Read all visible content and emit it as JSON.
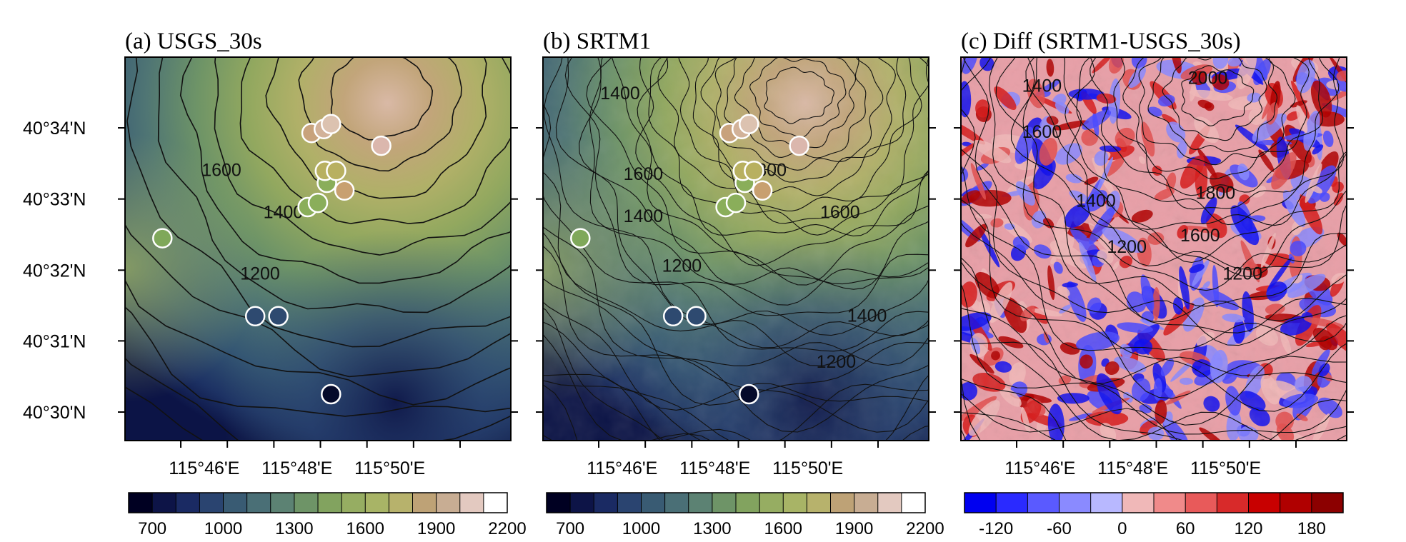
{
  "figure": {
    "y_tick_labels": [
      "40°34'N",
      "40°33'N",
      "40°32'N",
      "40°31'N",
      "40°30'N"
    ],
    "x_tick_labels": [
      "115°46'E",
      "115°48'E",
      "115°50'E"
    ]
  },
  "panels": [
    {
      "title": "(a) USGS_30s",
      "contour_labels": [
        "1600",
        "1400",
        "1200"
      ],
      "colorbar": {
        "tick_labels": [
          "700",
          "1000",
          "1300",
          "1600",
          "1900",
          "2200"
        ],
        "colors": [
          "#000022",
          "#0d1447",
          "#1a2a63",
          "#2a4470",
          "#395b73",
          "#4a6f76",
          "#5c8273",
          "#6e9467",
          "#82a35f",
          "#96ad62",
          "#a8b466",
          "#b7b26c",
          "#bea276",
          "#c8ad93",
          "#e3c9c0",
          "#ffffff"
        ]
      }
    },
    {
      "title": "(b) SRTM1",
      "contour_labels": [
        "1400",
        "1600",
        "1400",
        "1200",
        "1800",
        "1600",
        "1400",
        "1200"
      ],
      "colorbar": {
        "tick_labels": [
          "700",
          "1000",
          "1300",
          "1600",
          "1900",
          "2200"
        ],
        "colors": [
          "#000022",
          "#0d1447",
          "#1a2a63",
          "#2a4470",
          "#395b73",
          "#4a6f76",
          "#5c8273",
          "#6e9467",
          "#82a35f",
          "#96ad62",
          "#a8b466",
          "#b7b26c",
          "#bea276",
          "#c8ad93",
          "#e3c9c0",
          "#ffffff"
        ]
      }
    },
    {
      "title": "(c) Diff (SRTM1-USGS_30s)",
      "contour_labels": [
        "1400",
        "2000",
        "1600",
        "1400",
        "1800",
        "1600",
        "1200",
        "1200"
      ],
      "colorbar": {
        "tick_labels": [
          "-120",
          "-60",
          "0",
          "60",
          "120",
          "180"
        ],
        "colors": [
          "#0000f0",
          "#2a2aff",
          "#5a5aff",
          "#8a8aff",
          "#b8b8ff",
          "#f0b8b8",
          "#f08a8a",
          "#e85a5a",
          "#d82a2a",
          "#c80000",
          "#b00000",
          "#8c0000"
        ]
      }
    }
  ],
  "stations": [
    {
      "lon": 115.7517,
      "lat": 40.5408,
      "color": "#7fa85a"
    },
    {
      "lon": 115.785,
      "lat": 40.5225,
      "color": "#2e4a70"
    },
    {
      "lon": 115.7933,
      "lat": 40.5225,
      "color": "#2e4a70"
    },
    {
      "lon": 115.8038,
      "lat": 40.5481,
      "color": "#8aae5a"
    },
    {
      "lon": 115.8075,
      "lat": 40.5491,
      "color": "#8aae5a"
    },
    {
      "lon": 115.8107,
      "lat": 40.5538,
      "color": "#8aae5a"
    },
    {
      "lon": 115.81,
      "lat": 40.5566,
      "color": "#b8b060"
    },
    {
      "lon": 115.814,
      "lat": 40.5566,
      "color": "#b8b060"
    },
    {
      "lon": 115.817,
      "lat": 40.552,
      "color": "#c8a070"
    },
    {
      "lon": 115.8052,
      "lat": 40.5655,
      "color": "#c8a27c"
    },
    {
      "lon": 115.8096,
      "lat": 40.5664,
      "color": "#d2b299"
    },
    {
      "lon": 115.8122,
      "lat": 40.5676,
      "color": "#dcc2b0"
    },
    {
      "lon": 115.8302,
      "lat": 40.5625,
      "color": "#dbb7ad"
    },
    {
      "lon": 115.8122,
      "lat": 40.5042,
      "color": "#050a2a"
    }
  ]
}
